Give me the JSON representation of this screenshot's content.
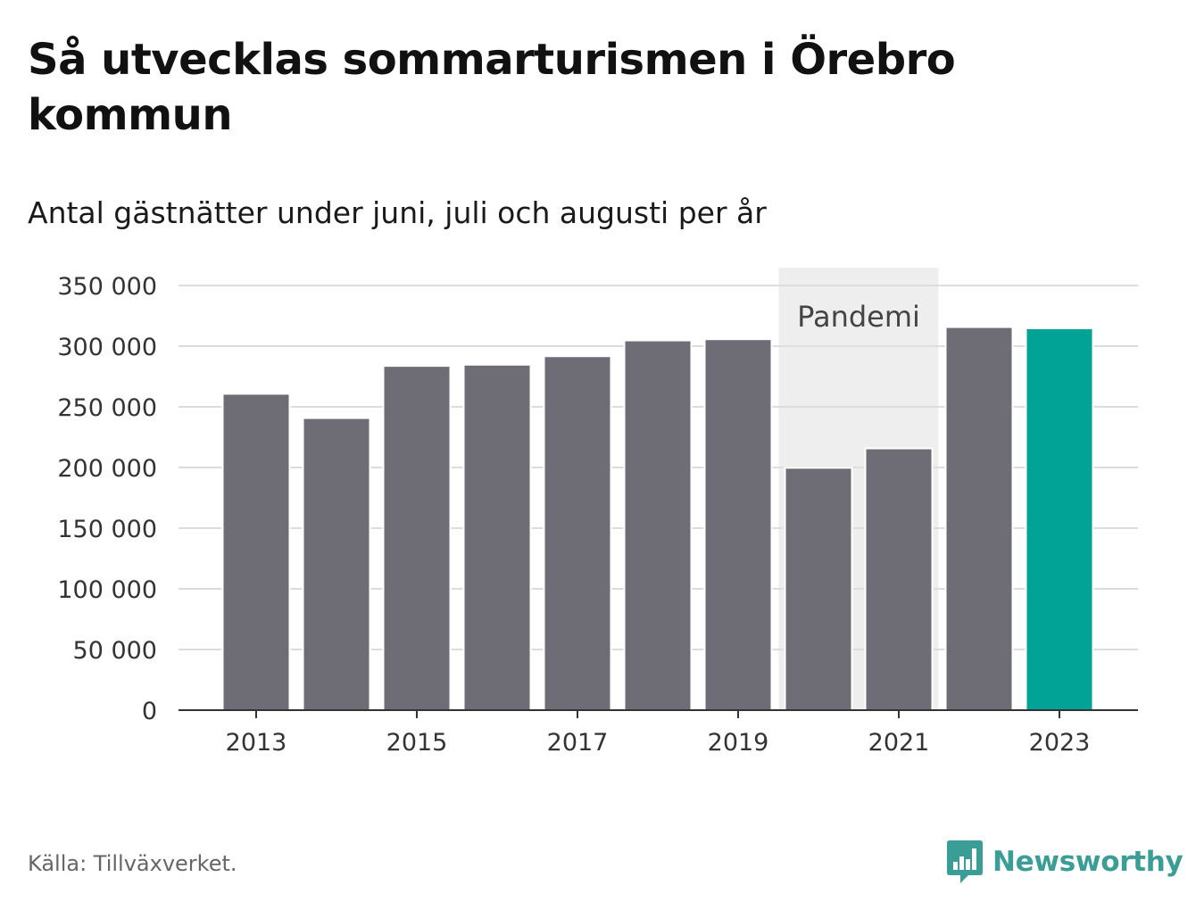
{
  "title": "Så utvecklas sommarturismen i Örebro kommun",
  "subtitle": "Antal gästnätter under juni, juli och augusti per år",
  "source": "Källa: Tillväxverket.",
  "brand": "Newsworthy",
  "colors": {
    "bar": "#6e6d75",
    "highlight": "#00a396",
    "shade": "#eeeeee",
    "grid": "#dddddd",
    "axis": "#333333",
    "brand": "#3a9d96"
  },
  "chart_data": {
    "type": "bar",
    "x": [
      2013,
      2014,
      2015,
      2016,
      2017,
      2018,
      2019,
      2020,
      2021,
      2022,
      2023
    ],
    "values": [
      260000,
      240000,
      283000,
      284000,
      291000,
      304000,
      305000,
      199000,
      215000,
      315000,
      314000
    ],
    "highlight_index": 10,
    "ylim": [
      0,
      350000
    ],
    "yticks": [
      0,
      50000,
      100000,
      150000,
      200000,
      250000,
      300000,
      350000
    ],
    "ytick_labels": [
      "0",
      "50 000",
      "100 000",
      "150 000",
      "200 000",
      "250 000",
      "300 000",
      "350 000"
    ],
    "xticks": [
      "2013",
      "2015",
      "2017",
      "2019",
      "2021",
      "2023"
    ],
    "annotation": {
      "label": "Pandemi",
      "from": 2020,
      "to": 2021
    },
    "grid": true,
    "xlabel": "",
    "ylabel": ""
  }
}
